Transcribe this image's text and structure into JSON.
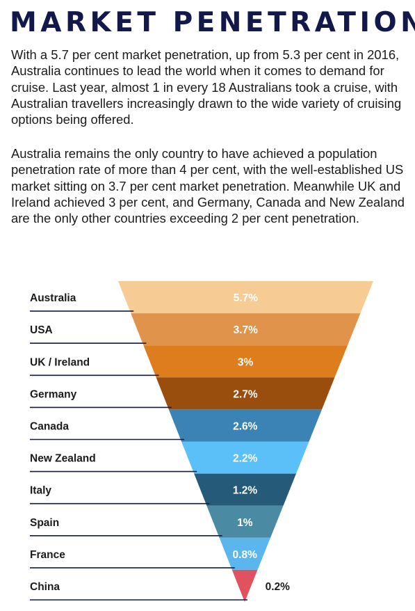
{
  "heading": "MARKET PENETRATION",
  "paragraphs": [
    "With a 5.7 per cent market penetration, up from 5.3 per cent in 2016, Australia continues to lead the world when it comes to demand for cruise.  Last year, almost 1 in every 18 Australians took a cruise, with Australian travellers increasingly drawn to the wide variety of cruising options being offered.",
    "Australia remains the only country to have achieved a population penetration rate of more than 4 per cent, with the well-established US market sitting on 3.7 per cent market penetration. Meanwhile UK and Ireland achieved 3 per cent, and Germany, Canada and New Zealand  are the only other countries exceeding 2 per cent penetration."
  ],
  "chart_data": {
    "type": "funnel",
    "categories": [
      "Australia",
      "USA",
      "UK / Ireland",
      "Germany",
      "Canada",
      "New Zealand",
      "Italy",
      "Spain",
      "France",
      "China"
    ],
    "values": [
      5.7,
      3.7,
      3,
      2.7,
      2.6,
      2.2,
      1.2,
      1,
      0.8,
      0.2
    ],
    "value_labels": [
      "5.7%",
      "3.7%",
      "3%",
      "2.7%",
      "2.6%",
      "2.2%",
      "1.2%",
      "1%",
      "0.8%",
      "0.2%"
    ],
    "colors": [
      "#f6cc94",
      "#e0944b",
      "#dd7d1d",
      "#9a4e0e",
      "#3b83b5",
      "#5bc0f8",
      "#255a78",
      "#4a8aa3",
      "#5bb6ee",
      "#e0525d"
    ],
    "label_text_color": "#ffffff",
    "outside_label_color": "#1b1b1b",
    "category_line_color": "#12194a"
  }
}
